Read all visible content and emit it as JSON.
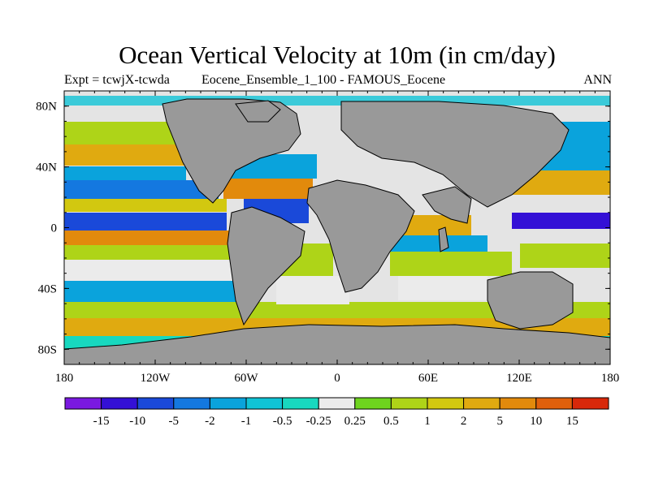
{
  "header": {
    "title": "Ocean Vertical Velocity at 10m (in cm/day)",
    "left": "Expt = tcwjX-tcwda",
    "center": "Eocene_Ensemble_1_100 - FAMOUS_Eocene",
    "right": "ANN"
  },
  "map": {
    "lon_labels": [
      "180",
      "120W",
      "60W",
      "0",
      "60E",
      "120E",
      "180"
    ],
    "lat_labels": [
      "80N",
      "40N",
      "0",
      "40S",
      "80S"
    ],
    "lon_ticks": [
      -180,
      -120,
      -60,
      0,
      60,
      120,
      180
    ],
    "lat_ticks": [
      80,
      40,
      0,
      -40,
      -80
    ],
    "land_color": "#999999"
  },
  "colorbar": {
    "labels": [
      "-15",
      "-10",
      "-5",
      "-2",
      "-1",
      "-0.5",
      "-0.25",
      "0.25",
      "0.5",
      "1",
      "2",
      "5",
      "10",
      "15"
    ],
    "colors": [
      "#7a19e0",
      "#3410d6",
      "#1a49d9",
      "#1478e0",
      "#0aa3dc",
      "#10c3d6",
      "#18d8bf",
      "#ebebeb",
      "#6ed41e",
      "#aed418",
      "#d2c810",
      "#e0aa10",
      "#e28a0c",
      "#e0600c",
      "#d8280a"
    ]
  }
}
